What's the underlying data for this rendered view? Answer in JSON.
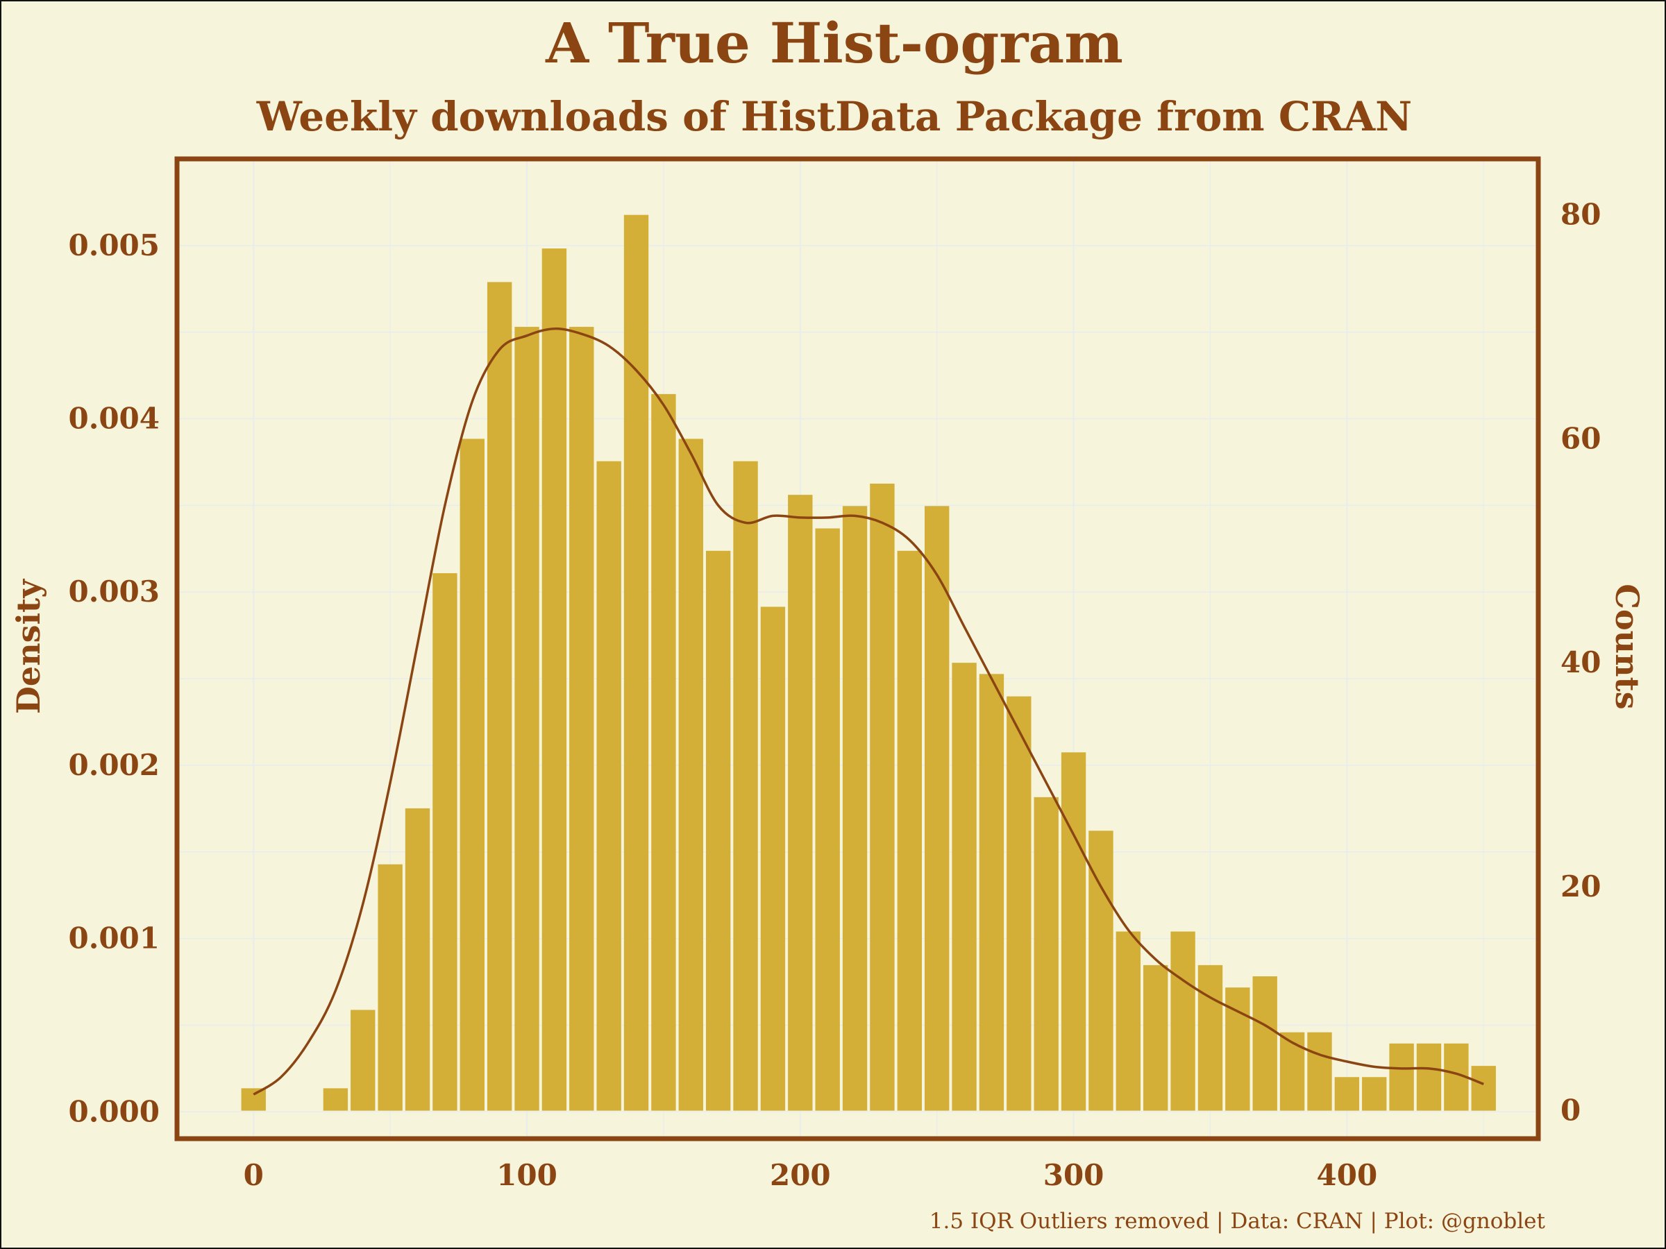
{
  "colors": {
    "background": "#f6f5dc",
    "text": "#8b4513",
    "bar": "#d4af37",
    "curve": "#8b4513",
    "grid": "#e9ecec"
  },
  "chart_data": {
    "type": "bar",
    "title": "A True Hist-ogram",
    "subtitle": "Weekly downloads of HistData Package from CRAN",
    "caption": "1.5 IQR Outliers removed | Data: CRAN | Plot: @gnoblet",
    "xlabel": "",
    "ylabel_left": "Density",
    "ylabel_right": "Counts",
    "xlim": [
      -28,
      470
    ],
    "ylim_density": [
      -0.000155,
      0.0055
    ],
    "ylim_counts": [
      -2.5,
      85
    ],
    "x_ticks": [
      0,
      100,
      200,
      300,
      400
    ],
    "y_ticks_density": [
      0.0,
      0.001,
      0.002,
      0.003,
      0.004,
      0.005
    ],
    "y_ticks_density_labels": [
      "0.000",
      "0.001",
      "0.002",
      "0.003",
      "0.004",
      "0.005"
    ],
    "y_ticks_counts": [
      0,
      20,
      40,
      60,
      80
    ],
    "bin_width": 10,
    "bin_centers": [
      0,
      10,
      20,
      30,
      40,
      50,
      60,
      70,
      80,
      90,
      100,
      110,
      120,
      130,
      140,
      150,
      160,
      170,
      180,
      190,
      200,
      210,
      220,
      230,
      240,
      250,
      260,
      270,
      280,
      290,
      300,
      310,
      320,
      330,
      340,
      350,
      360,
      370,
      380,
      390,
      400,
      410,
      420,
      430,
      440,
      450
    ],
    "counts": [
      2,
      0,
      0,
      2,
      9,
      22,
      27,
      48,
      60,
      74,
      70,
      77,
      70,
      58,
      80,
      64,
      60,
      50,
      58,
      45,
      55,
      52,
      54,
      56,
      50,
      54,
      40,
      39,
      37,
      28,
      32,
      25,
      16,
      13,
      16,
      13,
      11,
      12,
      7,
      7,
      3,
      3,
      6,
      6,
      6,
      4
    ],
    "density_curve": {
      "x": [
        0,
        10,
        20,
        30,
        40,
        50,
        60,
        70,
        80,
        90,
        100,
        110,
        120,
        130,
        140,
        150,
        160,
        170,
        180,
        190,
        200,
        210,
        220,
        230,
        240,
        250,
        260,
        270,
        280,
        290,
        300,
        310,
        320,
        330,
        340,
        350,
        360,
        370,
        380,
        390,
        400,
        410,
        420,
        430,
        440,
        450
      ],
      "y": [
        0.0001,
        0.0002,
        0.0004,
        0.0007,
        0.0012,
        0.0019,
        0.0027,
        0.0035,
        0.0041,
        0.0044,
        0.00448,
        0.00452,
        0.00449,
        0.00442,
        0.00428,
        0.00408,
        0.0038,
        0.0035,
        0.0034,
        0.00344,
        0.00343,
        0.00343,
        0.00344,
        0.0034,
        0.0033,
        0.0031,
        0.0028,
        0.0025,
        0.0022,
        0.0019,
        0.0016,
        0.0013,
        0.00105,
        0.00088,
        0.00076,
        0.00066,
        0.00058,
        0.0005,
        0.0004,
        0.00033,
        0.00029,
        0.00026,
        0.00025,
        0.00025,
        0.00022,
        0.00016
      ]
    },
    "grid": true
  }
}
